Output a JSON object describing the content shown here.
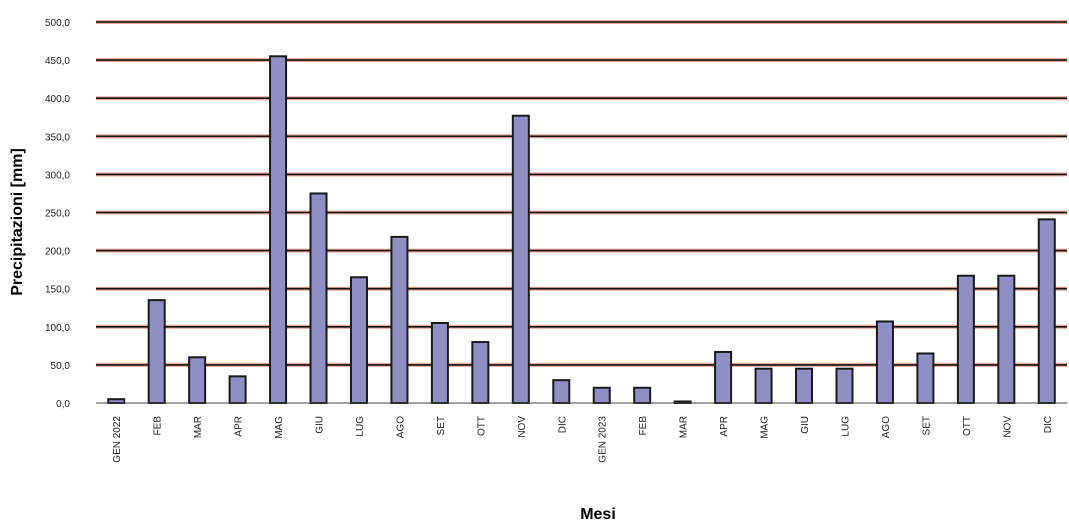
{
  "chart_data": {
    "type": "bar",
    "title": "",
    "xlabel": "Mesi",
    "ylabel": "Precipitazioni [mm]",
    "ylim": [
      0,
      500
    ],
    "ytick_labels": [
      "0,0",
      "50,0",
      "100,0",
      "150,0",
      "200,0",
      "250,0",
      "300,0",
      "350,0",
      "400,0",
      "450,0",
      "500,0"
    ],
    "grid": true,
    "categories": [
      "GEN 2022",
      "FEB",
      "MAR",
      "APR",
      "MAG",
      "GIU",
      "LUG",
      "AGO",
      "SET",
      "OTT",
      "NOV",
      "DIC",
      "GEN 2023",
      "FEB",
      "MAR",
      "APR",
      "MAG",
      "GIU",
      "LUG",
      "AGO",
      "SET",
      "OTT",
      "NOV",
      "DIC"
    ],
    "values": [
      5,
      135,
      60,
      35,
      455,
      275,
      165,
      218,
      105,
      80,
      377,
      30,
      20,
      20,
      2,
      67,
      45,
      45,
      45,
      107,
      65,
      167,
      167,
      241
    ],
    "colors": {
      "bar_fill": "#8f8fc6",
      "bar_stroke": "#1a1a1a",
      "grid_line": "#111111",
      "grid_halo": "#e8a898",
      "axis": "#444444"
    }
  }
}
